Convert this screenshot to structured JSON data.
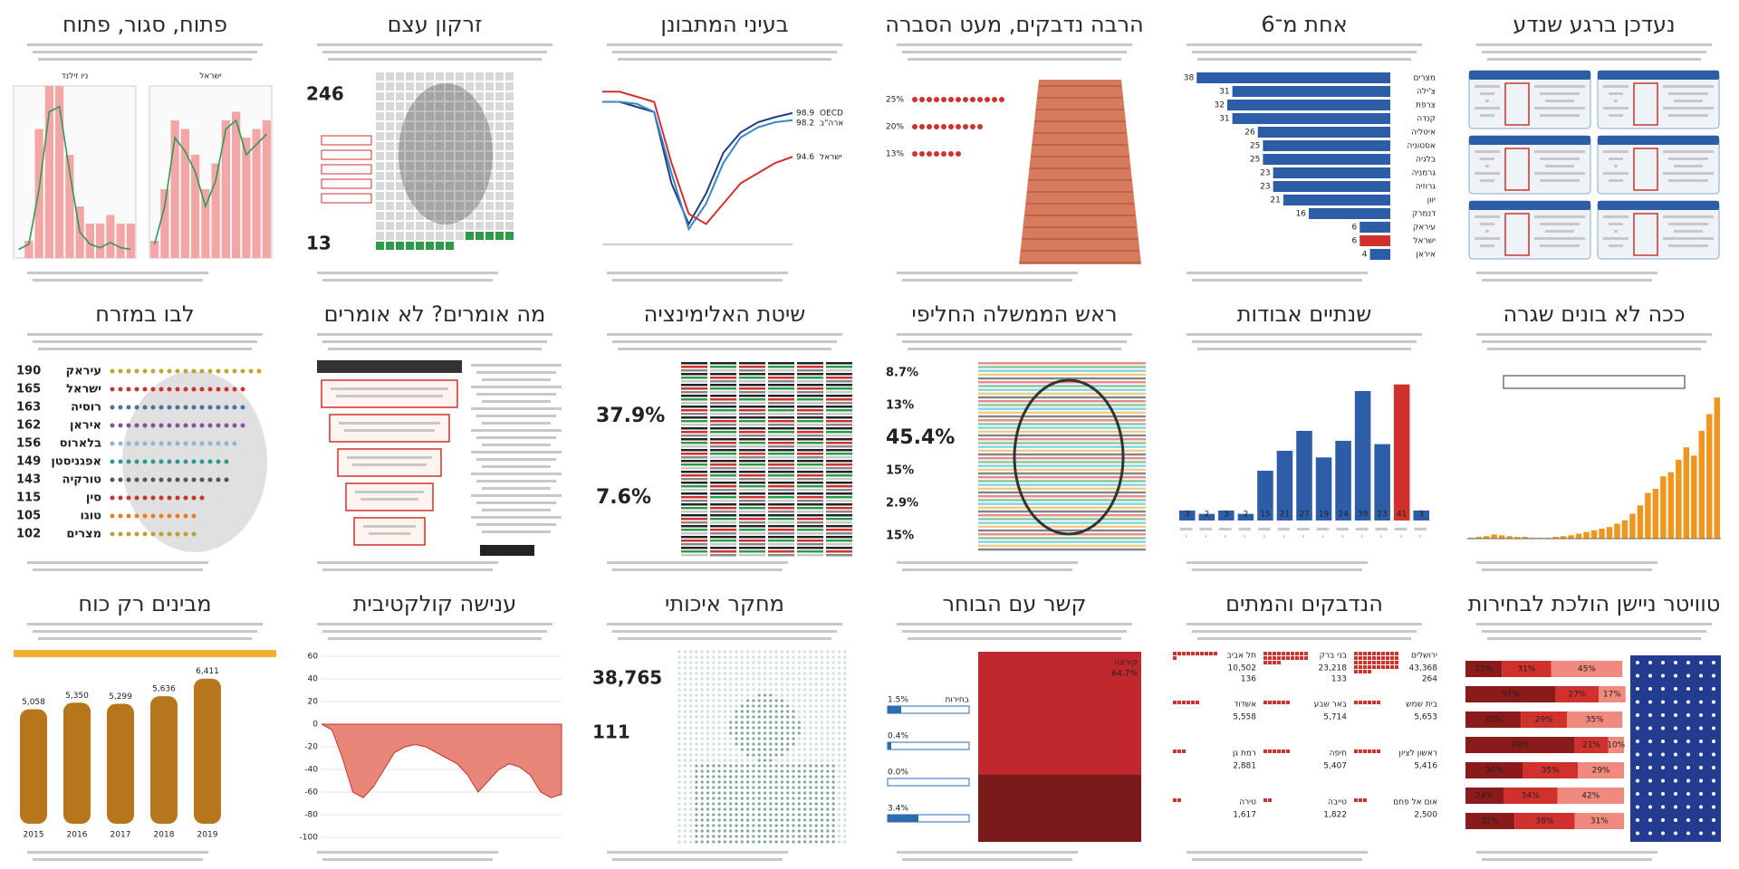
{
  "panels": [
    {
      "title": "פתוח, סגור, פתוח",
      "viz": {
        "type": "dual",
        "ylim": [
          0,
          100
        ],
        "charts": [
          {
            "name": "ניו זילנד",
            "bars": [
              0,
              10,
              75,
              100,
              100,
              60,
              30,
              20,
              20,
              25,
              20,
              20
            ],
            "line": [
              5,
              8,
              40,
              85,
              88,
              50,
              15,
              8,
              6,
              9,
              6,
              5
            ]
          },
          {
            "name": "ישראל",
            "bars": [
              10,
              40,
              80,
              75,
              60,
              40,
              55,
              80,
              85,
              70,
              75,
              80
            ],
            "line": [
              8,
              30,
              70,
              62,
              50,
              30,
              45,
              75,
              80,
              60,
              66,
              72
            ]
          }
        ]
      }
    },
    {
      "title": "זרקון עצם",
      "viz": {
        "type": "waffle",
        "total": 246,
        "highlight": 13
      }
    },
    {
      "title": "בעיני המתבונן",
      "viz": {
        "type": "lines",
        "ylim": [
          86,
          102
        ],
        "series": [
          {
            "name": "OECD",
            "color": "#1f3f7a",
            "values": [
              100,
              100,
              99.5,
              99,
              92,
              88,
              91,
              95,
              97,
              98,
              98.5,
              98.9
            ]
          },
          {
            "name": "ארה\"ב",
            "color": "#3a86c8",
            "values": [
              100,
              100,
              99.8,
              99,
              93,
              87.5,
              90,
              94,
              96.5,
              97.5,
              98,
              98.2
            ]
          },
          {
            "name": "ישראל",
            "color": "#d0312d",
            "values": [
              101,
              101,
              100.5,
              100,
              94,
              89,
              88,
              90,
              92,
              93,
              94,
              94.6
            ]
          }
        ]
      }
    },
    {
      "title": "הרבה נדבקים, מעט הסברה",
      "viz": {
        "type": "dots",
        "rows": [
          {
            "label": "25%",
            "value": 25
          },
          {
            "label": "20%",
            "value": 20
          },
          {
            "label": "13%",
            "value": 13
          }
        ]
      }
    },
    {
      "title": "אחת מ־6",
      "viz": {
        "type": "hbar",
        "xlim": [
          0,
          40
        ],
        "categories": [
          "מצרים",
          "צ'ילה",
          "צרפת",
          "קנדה",
          "איטליה",
          "אסטוניה",
          "בלגיה",
          "גרמניה",
          "גרוזיה",
          "יוון",
          "דנמרק",
          "עיראק",
          "ישראל",
          "איראן"
        ],
        "values": [
          38,
          31,
          32,
          31,
          26,
          25,
          25,
          23,
          23,
          21,
          16,
          6,
          6,
          4
        ],
        "colors": [
          "#2e5da8",
          "#2e5da8",
          "#2e5da8",
          "#2e5da8",
          "#2e5da8",
          "#2e5da8",
          "#2e5da8",
          "#2e5da8",
          "#2e5da8",
          "#2e5da8",
          "#2e5da8",
          "#2e5da8",
          "#d0312d",
          "#2e5da8"
        ]
      }
    },
    {
      "title": "נעדכן ברגע שנדע",
      "viz": {
        "type": "cards"
      }
    },
    {
      "title": "לבו במזרח",
      "viz": {
        "type": "list",
        "items": [
          {
            "label": "עיראק",
            "value": 190,
            "color": "#c9a227"
          },
          {
            "label": "ישראל",
            "value": 165,
            "color": "#d0312d"
          },
          {
            "label": "רוסיה",
            "value": 163,
            "color": "#4a6fa5"
          },
          {
            "label": "איראן",
            "value": 162,
            "color": "#8a4f9e"
          },
          {
            "label": "בלארוס",
            "value": 156,
            "color": "#8fb3d9"
          },
          {
            "label": "אפגניסטן",
            "value": 149,
            "color": "#2e9a8a"
          },
          {
            "label": "טורקיה",
            "value": 143,
            "color": "#555555"
          },
          {
            "label": "סין",
            "value": 115,
            "color": "#c0392b"
          },
          {
            "label": "טוגו",
            "value": 105,
            "color": "#e67e22"
          },
          {
            "label": "מצרים",
            "value": 102,
            "color": "#b8a03a"
          }
        ]
      }
    },
    {
      "title": "מה אומרים? לא אומרים",
      "viz": {
        "type": "funnel"
      }
    },
    {
      "title": "שיטת האלימינציה",
      "viz": {
        "type": "textgrid",
        "items": [
          {
            "text": "37.9%",
            "color": "#d0312d"
          },
          {
            "text": "7.6%",
            "color": "#2e9a4a"
          }
        ]
      }
    },
    {
      "title": "ראש הממשלה החליפי",
      "viz": {
        "type": "portrait",
        "items": [
          {
            "text": "8.7%",
            "color": "#2e9a4a"
          },
          {
            "text": "13%",
            "color": "#e6a020"
          },
          {
            "text": "45.4%",
            "color": "#d0312d"
          },
          {
            "text": "15%",
            "color": "#222222"
          },
          {
            "text": "2.9%",
            "color": "#e67e22"
          },
          {
            "text": "15%",
            "color": "#1fb5c9"
          }
        ]
      }
    },
    {
      "title": "שנתיים אבודות",
      "viz": {
        "type": "vbar",
        "ylim": [
          0,
          45
        ],
        "values": [
          3,
          2,
          3,
          2,
          15,
          21,
          27,
          19,
          24,
          39,
          23,
          41,
          3
        ],
        "colors": [
          "#2e5da8",
          "#2e5da8",
          "#2e5da8",
          "#2e5da8",
          "#2e5da8",
          "#2e5da8",
          "#2e5da8",
          "#2e5da8",
          "#2e5da8",
          "#2e5da8",
          "#2e5da8",
          "#d0312d",
          "#2e5da8"
        ]
      }
    },
    {
      "title": "ככה לא בונים שגרה",
      "viz": {
        "type": "obar",
        "ylim": [
          0,
          180
        ],
        "color": "#f0961e",
        "values": [
          1,
          2,
          3,
          5,
          4,
          3,
          2,
          2,
          1,
          1,
          1,
          2,
          3,
          4,
          6,
          8,
          10,
          12,
          14,
          18,
          22,
          30,
          40,
          55,
          60,
          75,
          80,
          95,
          110,
          100,
          130,
          150,
          170
        ]
      }
    },
    {
      "title": "מבינים רק כוח",
      "viz": {
        "type": "bottles",
        "ylim": [
          0,
          7000
        ],
        "values": [
          5058,
          5350,
          5299,
          5636,
          6411
        ],
        "value_labels": [
          "5,058",
          "5,350",
          "5,299",
          "5,636",
          "6,411"
        ],
        "years": [
          "2015",
          "2016",
          "2017",
          "2018",
          "2019"
        ]
      }
    },
    {
      "title": "ענישה קולקטיבית",
      "viz": {
        "type": "area",
        "ylim": [
          -100,
          60
        ],
        "yticks": [
          60,
          40,
          20,
          0,
          -20,
          -40,
          -60,
          -80,
          -100
        ],
        "values": [
          0,
          -5,
          -30,
          -60,
          -65,
          -55,
          -40,
          -25,
          -20,
          -18,
          -20,
          -25,
          -30,
          -35,
          -45,
          -60,
          -50,
          -40,
          -35,
          -38,
          -45,
          -60,
          -65,
          -62
        ]
      }
    },
    {
      "title": "מחקר איכותי",
      "viz": {
        "type": "medic",
        "items": [
          {
            "text": "38,765",
            "color": "#6f8fa8"
          },
          {
            "text": "111",
            "color": "#d0312d"
          }
        ]
      }
    },
    {
      "title": "קשר עם הבוחר",
      "viz": {
        "type": "stack",
        "items": [
          {
            "label": "קורונה",
            "value": 64.7,
            "text": "64.7%"
          },
          {
            "label": "בחירות",
            "value": 1.5,
            "text": "1.5%"
          },
          {
            "value": 0.4,
            "text": "0.4%"
          },
          {
            "value": 0.0,
            "text": "0.0%"
          },
          {
            "value": 3.4,
            "text": "3.4%"
          }
        ]
      }
    },
    {
      "title": "הנדבקים והמתים",
      "viz": {
        "type": "cities",
        "items": [
          {
            "name": "ירושלים",
            "cases": 43368,
            "cases_label": "43,368",
            "deaths": 264
          },
          {
            "name": "בני ברק",
            "cases": 23218,
            "cases_label": "23,218",
            "deaths": 133
          },
          {
            "name": "תל אביב",
            "cases": 10502,
            "cases_label": "10,502",
            "deaths": 136
          },
          {
            "name": "בית שמש",
            "cases": 5653,
            "cases_label": "5,653"
          },
          {
            "name": "באר שבע",
            "cases": 5714,
            "cases_label": "5,714"
          },
          {
            "name": "אשדוד",
            "cases": 5558,
            "cases_label": "5,558"
          },
          {
            "name": "ראשון לציון",
            "cases": 5416,
            "cases_label": "5,416"
          },
          {
            "name": "חיפה",
            "cases": 5407,
            "cases_label": "5,407"
          },
          {
            "name": "רמת גן",
            "cases": 2881,
            "cases_label": "2,881"
          },
          {
            "name": "אום אל פחם",
            "cases": 2500,
            "cases_label": "2,500"
          },
          {
            "name": "טייבה",
            "cases": 1822,
            "cases_label": "1,822"
          },
          {
            "name": "טירה",
            "cases": 1617,
            "cases_label": "1,617"
          }
        ]
      }
    },
    {
      "title": "טוויטר ניישן הולכת לבחירות",
      "viz": {
        "type": "twitter",
        "rows": [
          [
            {
              "value": 23,
              "label": "23%"
            },
            {
              "value": 31,
              "label": "31%"
            },
            {
              "value": 45,
              "label": "45%"
            }
          ],
          [
            {
              "value": 57,
              "label": "57%"
            },
            {
              "value": 27,
              "label": "27%"
            },
            {
              "value": 17,
              "label": "17%"
            }
          ],
          [
            {
              "value": 35,
              "label": "35%"
            },
            {
              "value": 29,
              "label": "29%"
            },
            {
              "value": 35,
              "label": "35%"
            }
          ],
          [
            {
              "value": 69,
              "label": "69%"
            },
            {
              "value": 21,
              "label": "21%"
            },
            {
              "value": 10,
              "label": "10%"
            }
          ],
          [
            {
              "value": 36,
              "label": "36%"
            },
            {
              "value": 35,
              "label": "35%"
            },
            {
              "value": 29,
              "label": "29%"
            }
          ],
          [
            {
              "value": 24,
              "label": "24%"
            },
            {
              "value": 34,
              "label": "34%"
            },
            {
              "value": 42,
              "label": "42%"
            }
          ],
          [
            {
              "value": 31,
              "label": "31%"
            },
            {
              "value": 38,
              "label": "38%"
            },
            {
              "value": 31,
              "label": "31%"
            }
          ]
        ]
      }
    }
  ]
}
